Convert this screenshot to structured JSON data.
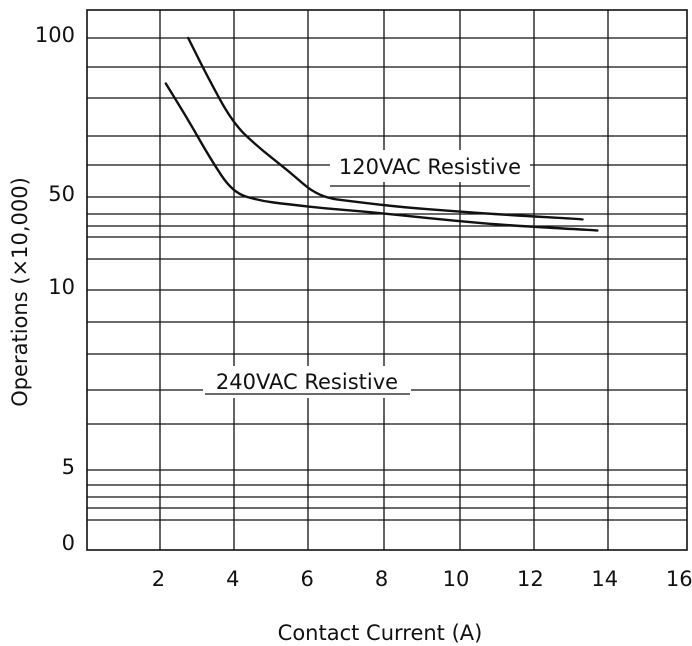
{
  "chart_data": {
    "type": "line",
    "xlabel": "Contact Current (A)",
    "ylabel": "Operations (×10,000)",
    "x_ticks": [
      "2",
      "4",
      "6",
      "8",
      "10",
      "12",
      "14",
      "16"
    ],
    "x_tick_values": [
      2,
      4,
      6,
      8,
      10,
      12,
      14,
      16
    ],
    "y_ticks": [
      "100",
      "50",
      "10",
      "5",
      "0"
    ],
    "y_tick_values": [
      100,
      50,
      10,
      5,
      0
    ],
    "xlim": [
      0,
      16
    ],
    "grid": true,
    "series": [
      {
        "name": "120VAC Resistive",
        "x": [
          2.8,
          3.3,
          4.0,
          4.7,
          5.5,
          6.3,
          7.3,
          8.5,
          10.0,
          11.5,
          13.4
        ],
        "y": [
          100,
          85,
          69,
          62,
          56,
          50,
          46,
          42,
          39,
          36.5,
          34
        ]
      },
      {
        "name": "240VAC Resistive",
        "x": [
          2.2,
          2.8,
          3.4,
          4.0,
          4.7,
          5.5,
          6.5,
          7.5,
          8.5,
          10.0,
          11.5,
          13.8
        ],
        "y": [
          82,
          70,
          59,
          51,
          47,
          44,
          41,
          39,
          36.5,
          33,
          30.5,
          28
        ]
      }
    ],
    "annotations": [
      {
        "text": "120VAC Resistive"
      },
      {
        "text": "240VAC Resistive"
      }
    ]
  }
}
